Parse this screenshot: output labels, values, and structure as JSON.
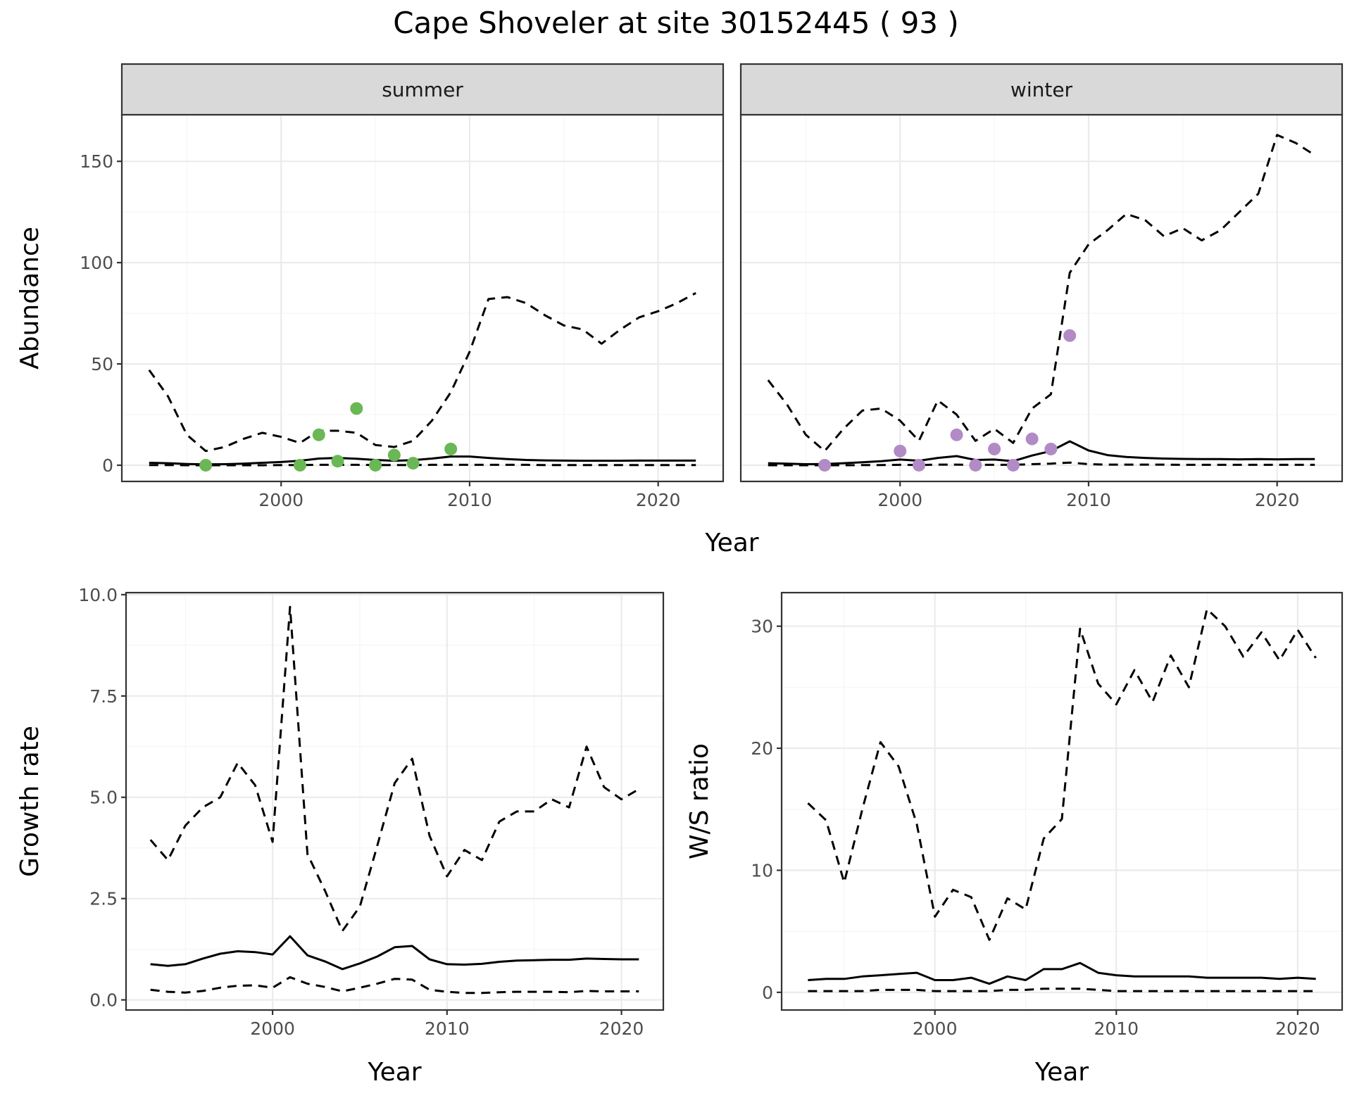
{
  "figure": {
    "title": "Cape Shoveler at site 30152445 ( 93 )"
  },
  "colors": {
    "summer_points": "#6ab755",
    "winter_points": "#b28ac6",
    "lines": "#000000",
    "strip_fill": "#d9d9d9"
  },
  "chart_data": [
    {
      "id": "abundance",
      "type": "line",
      "facet_by": "season",
      "facets": [
        {
          "name": "summer",
          "x": [
            1993,
            1994,
            1995,
            1996,
            1997,
            1998,
            1999,
            2000,
            2001,
            2002,
            2003,
            2004,
            2005,
            2006,
            2007,
            2008,
            2009,
            2010,
            2011,
            2012,
            2013,
            2014,
            2015,
            2016,
            2017,
            2018,
            2019,
            2020,
            2021,
            2022
          ],
          "series": [
            {
              "role": "mean",
              "style": "solid",
              "values": [
                1.2,
                1.0,
                0.6,
                0.4,
                0.5,
                0.8,
                1.2,
                1.6,
                2.2,
                3.3,
                3.6,
                3.2,
                2.6,
                2.2,
                2.5,
                3.3,
                4.3,
                4.3,
                3.6,
                3.0,
                2.6,
                2.4,
                2.3,
                2.2,
                2.2,
                2.2,
                2.3,
                2.3,
                2.3,
                2.3
              ]
            },
            {
              "role": "upper",
              "style": "dashed",
              "values": [
                47,
                34,
                15,
                7,
                9,
                13,
                16,
                14,
                11,
                17,
                17,
                16,
                10,
                9,
                12,
                22,
                36,
                56,
                82,
                83,
                80,
                74,
                69,
                67,
                60,
                67,
                73,
                76,
                80,
                85
              ]
            },
            {
              "role": "lower",
              "style": "dashed",
              "values": [
                0.1,
                0.1,
                0,
                0,
                0,
                0,
                0,
                0.1,
                0.1,
                0.2,
                0.2,
                0.2,
                0.1,
                0.1,
                0.1,
                0.2,
                0.2,
                0.2,
                0.2,
                0.2,
                0.2,
                0.1,
                0.1,
                0.1,
                0.1,
                0.1,
                0.1,
                0.1,
                0.1,
                0.1
              ]
            }
          ],
          "points": {
            "x": [
              1996,
              2001,
              2002,
              2003,
              2004,
              2005,
              2006,
              2007,
              2009
            ],
            "y": [
              0,
              0,
              15,
              2,
              28,
              0,
              5,
              1,
              8
            ]
          }
        },
        {
          "name": "winter",
          "x": [
            1993,
            1994,
            1995,
            1996,
            1997,
            1998,
            1999,
            2000,
            2001,
            2002,
            2003,
            2004,
            2005,
            2006,
            2007,
            2008,
            2009,
            2010,
            2011,
            2012,
            2013,
            2014,
            2015,
            2016,
            2017,
            2018,
            2019,
            2020,
            2021,
            2022
          ],
          "series": [
            {
              "role": "mean",
              "style": "solid",
              "values": [
                1.0,
                0.8,
                0.5,
                0.6,
                1.0,
                1.5,
                2.0,
                2.8,
                2.2,
                3.6,
                4.5,
                2.6,
                2.8,
                2.0,
                4.8,
                7.0,
                11.8,
                7.3,
                5.0,
                4.1,
                3.6,
                3.3,
                3.1,
                3.0,
                3.0,
                2.9,
                3.0,
                2.9,
                3.0,
                3.0
              ]
            },
            {
              "role": "upper",
              "style": "dashed",
              "values": [
                42,
                30,
                15,
                7,
                18,
                27,
                28,
                22,
                12,
                32,
                25,
                12,
                18,
                11,
                28,
                35,
                95,
                109,
                116,
                124,
                121,
                113,
                117,
                111,
                116,
                125,
                134,
                163,
                159,
                153
              ]
            },
            {
              "role": "lower",
              "style": "dashed",
              "values": [
                0,
                0,
                0,
                0,
                0,
                0.1,
                0.1,
                0.2,
                0.1,
                0.3,
                0.3,
                0.2,
                0.2,
                0.2,
                0.5,
                0.8,
                1.3,
                0.5,
                0.3,
                0.3,
                0.3,
                0.3,
                0.2,
                0.2,
                0.2,
                0.2,
                0.2,
                0.2,
                0.2,
                0.2
              ]
            }
          ],
          "points": {
            "x": [
              1996,
              2000,
              2001,
              2003,
              2004,
              2005,
              2006,
              2007,
              2008,
              2009
            ],
            "y": [
              0,
              7,
              0,
              15,
              0,
              8,
              0,
              13,
              8,
              64
            ]
          }
        }
      ],
      "xlabel": "Year",
      "ylabel": "Abundance",
      "xlim": [
        1991.55,
        2023.45
      ],
      "ylim": [
        -8,
        173
      ],
      "xticks": [
        2000,
        2010,
        2020
      ],
      "yticks": [
        0,
        50,
        100,
        150
      ],
      "grid": true
    },
    {
      "id": "growth",
      "type": "line",
      "x": [
        1993,
        1994,
        1995,
        1996,
        1997,
        1998,
        1999,
        2000,
        2001,
        2002,
        2003,
        2004,
        2005,
        2006,
        2007,
        2008,
        2009,
        2010,
        2011,
        2012,
        2013,
        2014,
        2015,
        2016,
        2017,
        2018,
        2019,
        2020,
        2021
      ],
      "series": [
        {
          "role": "mean",
          "style": "solid",
          "values": [
            0.88,
            0.84,
            0.88,
            1.02,
            1.14,
            1.2,
            1.18,
            1.12,
            1.57,
            1.1,
            0.95,
            0.76,
            0.9,
            1.07,
            1.3,
            1.33,
            1.0,
            0.88,
            0.87,
            0.89,
            0.94,
            0.97,
            0.98,
            0.99,
            0.99,
            1.02,
            1.01,
            1.0,
            1.0
          ]
        },
        {
          "role": "upper",
          "style": "dashed",
          "values": [
            3.95,
            3.45,
            4.3,
            4.75,
            5.0,
            5.85,
            5.3,
            3.9,
            9.7,
            3.6,
            2.7,
            1.7,
            2.3,
            3.8,
            5.35,
            5.95,
            4.05,
            3.05,
            3.7,
            3.45,
            4.4,
            4.65,
            4.65,
            4.95,
            4.75,
            6.25,
            5.25,
            4.95,
            5.2
          ]
        },
        {
          "role": "lower",
          "style": "dashed",
          "values": [
            0.25,
            0.2,
            0.18,
            0.22,
            0.3,
            0.35,
            0.36,
            0.3,
            0.56,
            0.4,
            0.32,
            0.21,
            0.3,
            0.4,
            0.52,
            0.5,
            0.25,
            0.2,
            0.17,
            0.17,
            0.19,
            0.2,
            0.2,
            0.2,
            0.19,
            0.22,
            0.21,
            0.21,
            0.21
          ]
        }
      ],
      "xlabel": "Year",
      "ylabel": "Growth rate",
      "xlim": [
        1991.6,
        2022.4
      ],
      "ylim": [
        -0.25,
        10.05
      ],
      "xticks": [
        2000,
        2010,
        2020
      ],
      "ytick_labels": [
        "0.0",
        "2.5",
        "5.0",
        "7.5",
        "10.0"
      ],
      "grid": true
    },
    {
      "id": "ws_ratio",
      "type": "line",
      "x": [
        1993,
        1994,
        1995,
        1996,
        1997,
        1998,
        1999,
        2000,
        2001,
        2002,
        2003,
        2004,
        2005,
        2006,
        2007,
        2008,
        2009,
        2010,
        2011,
        2012,
        2013,
        2014,
        2015,
        2016,
        2017,
        2018,
        2019,
        2020,
        2021
      ],
      "series": [
        {
          "role": "mean",
          "style": "solid",
          "values": [
            1.0,
            1.1,
            1.1,
            1.3,
            1.4,
            1.5,
            1.6,
            1.0,
            1.0,
            1.2,
            0.7,
            1.3,
            1.0,
            1.9,
            1.9,
            2.4,
            1.6,
            1.4,
            1.3,
            1.3,
            1.3,
            1.3,
            1.2,
            1.2,
            1.2,
            1.2,
            1.1,
            1.2,
            1.1
          ]
        },
        {
          "role": "upper",
          "style": "dashed",
          "values": [
            15.5,
            14.1,
            9.0,
            15.0,
            20.5,
            18.5,
            13.8,
            6.2,
            8.4,
            7.8,
            4.3,
            7.7,
            6.8,
            12.6,
            14.2,
            29.8,
            25.3,
            23.6,
            26.4,
            23.8,
            27.6,
            25.0,
            31.4,
            30.0,
            27.5,
            29.5,
            27.2,
            29.7,
            27.4
          ]
        },
        {
          "role": "lower",
          "style": "dashed",
          "values": [
            0.1,
            0.1,
            0.1,
            0.1,
            0.2,
            0.2,
            0.2,
            0.1,
            0.1,
            0.1,
            0.1,
            0.2,
            0.2,
            0.3,
            0.3,
            0.3,
            0.2,
            0.1,
            0.1,
            0.1,
            0.1,
            0.1,
            0.1,
            0.1,
            0.1,
            0.1,
            0.1,
            0.1,
            0.1
          ]
        }
      ],
      "xlabel": "Year",
      "ylabel": "W/S ratio",
      "xlim": [
        1991.55,
        2022.45
      ],
      "ylim": [
        -1.45,
        32.75
      ],
      "xticks": [
        2000,
        2010,
        2020
      ],
      "yticks": [
        0,
        10,
        20,
        30
      ],
      "grid": true
    }
  ]
}
